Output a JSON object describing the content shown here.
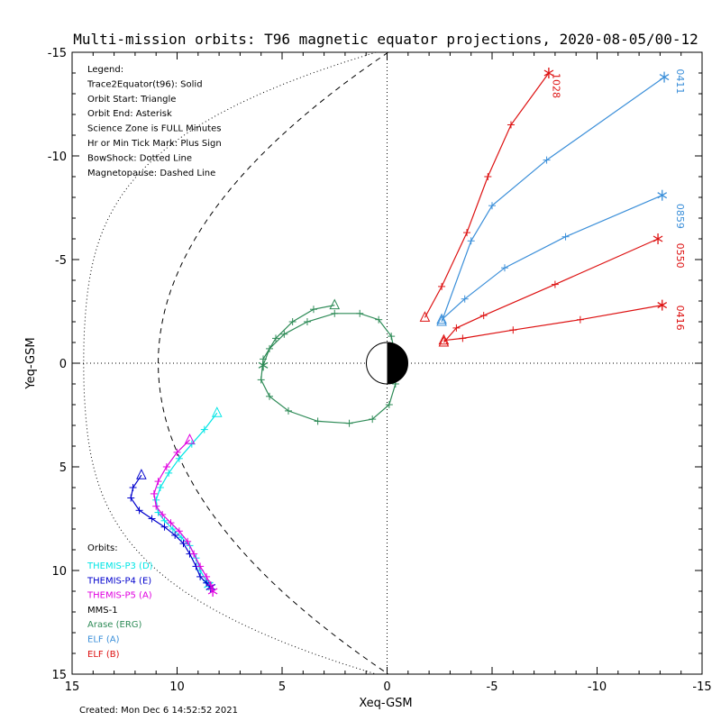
{
  "chart_data": {
    "type": "scatter",
    "title": "Multi-mission orbits: T96 magnetic equator projections, 2020-08-05/00-12",
    "xlabel": "Xeq-GSM",
    "ylabel": "Yeq-GSM",
    "xlim": [
      15,
      -15
    ],
    "ylim": [
      -15,
      15
    ],
    "x_ticks": [
      "15",
      "10",
      "5",
      "0",
      "-5",
      "-10",
      "-15"
    ],
    "y_ticks": [
      "-15",
      "-10",
      "-5",
      "0",
      "5",
      "10",
      "15"
    ],
    "legend_lines": [
      "Legend:",
      "Trace2Equator(t96): Solid",
      "Orbit Start: Triangle",
      "Orbit End: Asterisk",
      "Science Zone is FULL Minutes",
      "Hr or Min Tick Mark: Plus Sign",
      "BowShock: Dotted Line",
      "Magnetopause: Dashed Line"
    ],
    "orbits_header": "Orbits:",
    "footer": "Created: Mon Dec  6 14:52:52 2021",
    "colors": {
      "themis_d": "#00e5e5",
      "themis_e": "#0000cd",
      "themis_a": "#e000e0",
      "mms": "#000000",
      "arase": "#2e8b57",
      "elf_a": "#3b8fd9",
      "elf_b": "#dd1111"
    },
    "series": [
      {
        "name": "THEMIS-P3 (D)",
        "color": "#00e5e5",
        "points": [
          [
            8.1,
            2.4
          ],
          [
            8.7,
            3.2
          ],
          [
            9.3,
            3.9
          ],
          [
            9.9,
            4.6
          ],
          [
            10.4,
            5.3
          ],
          [
            10.8,
            6.0
          ],
          [
            11.0,
            6.6
          ],
          [
            10.9,
            7.2
          ],
          [
            10.6,
            7.6
          ],
          [
            10.2,
            8.0
          ],
          [
            9.8,
            8.4
          ],
          [
            9.4,
            8.8
          ],
          [
            9.1,
            9.4
          ],
          [
            8.9,
            10.0
          ],
          [
            8.6,
            10.5
          ],
          [
            8.5,
            10.7
          ]
        ]
      },
      {
        "name": "THEMIS-P4 (E)",
        "color": "#0000cd",
        "points": [
          [
            11.7,
            5.4
          ],
          [
            12.1,
            6.0
          ],
          [
            12.2,
            6.5
          ],
          [
            11.8,
            7.1
          ],
          [
            11.2,
            7.5
          ],
          [
            10.6,
            7.9
          ],
          [
            10.1,
            8.3
          ],
          [
            9.7,
            8.7
          ],
          [
            9.4,
            9.2
          ],
          [
            9.1,
            9.8
          ],
          [
            8.9,
            10.3
          ],
          [
            8.6,
            10.6
          ],
          [
            8.4,
            10.8
          ]
        ]
      },
      {
        "name": "THEMIS-P5 (A)",
        "color": "#e000e0",
        "points": [
          [
            9.4,
            3.7
          ],
          [
            10.0,
            4.3
          ],
          [
            10.5,
            5.0
          ],
          [
            10.9,
            5.7
          ],
          [
            11.1,
            6.3
          ],
          [
            11.0,
            6.9
          ],
          [
            10.7,
            7.3
          ],
          [
            10.3,
            7.7
          ],
          [
            9.9,
            8.1
          ],
          [
            9.5,
            8.6
          ],
          [
            9.2,
            9.2
          ],
          [
            8.9,
            9.8
          ],
          [
            8.6,
            10.3
          ],
          [
            8.4,
            10.7
          ],
          [
            8.3,
            11.0
          ]
        ]
      },
      {
        "name": "MMS-1",
        "color": "#000000",
        "points": []
      },
      {
        "name": "Arase (ERG)",
        "color": "#2e8b57",
        "points": [
          [
            2.5,
            -2.8
          ],
          [
            3.5,
            -2.6
          ],
          [
            4.5,
            -2.0
          ],
          [
            5.3,
            -1.2
          ],
          [
            5.9,
            -0.2
          ],
          [
            6.0,
            0.8
          ],
          [
            5.6,
            1.6
          ],
          [
            4.7,
            2.3
          ],
          [
            3.3,
            2.8
          ],
          [
            1.8,
            2.9
          ],
          [
            0.7,
            2.7
          ],
          [
            -0.1,
            2.0
          ],
          [
            -0.4,
            1.0
          ],
          [
            -0.4,
            -0.3
          ],
          [
            -0.2,
            -1.3
          ],
          [
            0.4,
            -2.1
          ],
          [
            1.3,
            -2.4
          ],
          [
            2.5,
            -2.4
          ],
          [
            3.8,
            -2.0
          ],
          [
            4.9,
            -1.4
          ],
          [
            5.6,
            -0.7
          ],
          [
            5.9,
            0.1
          ]
        ]
      },
      {
        "name": "ELF (A)",
        "color": "#3b8fd9",
        "points": [
          [
            -2.6,
            -2.1
          ],
          [
            -3.7,
            -3.1
          ],
          [
            -5.6,
            -4.6
          ],
          [
            -8.5,
            -6.1
          ],
          [
            -13.1,
            -8.1
          ]
        ]
      },
      {
        "name": "ELF (A)",
        "color": "#3b8fd9",
        "points": [
          [
            -2.6,
            -2.0
          ],
          [
            -4.0,
            -5.9
          ],
          [
            -5.0,
            -7.6
          ],
          [
            -7.6,
            -9.8
          ],
          [
            -13.2,
            -13.8
          ]
        ]
      },
      {
        "name": "ELF (B)",
        "color": "#dd1111",
        "points": [
          [
            -2.7,
            -1.0
          ],
          [
            -3.3,
            -1.7
          ],
          [
            -4.6,
            -2.3
          ],
          [
            -8.0,
            -3.8
          ],
          [
            -12.9,
            -6.0
          ]
        ]
      },
      {
        "name": "ELF (B)",
        "color": "#dd1111",
        "points": [
          [
            -2.7,
            -1.1
          ],
          [
            -3.6,
            -1.2
          ],
          [
            -6.0,
            -1.6
          ],
          [
            -9.2,
            -2.1
          ],
          [
            -13.1,
            -2.8
          ]
        ]
      },
      {
        "name": "ELF (B)",
        "color": "#dd1111",
        "points": [
          [
            -1.8,
            -2.2
          ],
          [
            -2.6,
            -3.7
          ],
          [
            -3.8,
            -6.3
          ],
          [
            -4.8,
            -9.0
          ],
          [
            -5.9,
            -11.5
          ],
          [
            -7.7,
            -14.0
          ]
        ]
      }
    ],
    "end_labels": [
      {
        "text": "0411",
        "color": "#3b8fd9",
        "x": -13.8,
        "y": -14.2
      },
      {
        "text": "0859",
        "color": "#3b8fd9",
        "x": -13.8,
        "y": -7.7
      },
      {
        "text": "0550",
        "color": "#dd1111",
        "x": -13.8,
        "y": -5.8
      },
      {
        "text": "0416",
        "color": "#dd1111",
        "x": -13.8,
        "y": -2.8
      },
      {
        "text": "1028",
        "color": "#dd1111",
        "x": -7.9,
        "y": -14.0
      }
    ]
  }
}
